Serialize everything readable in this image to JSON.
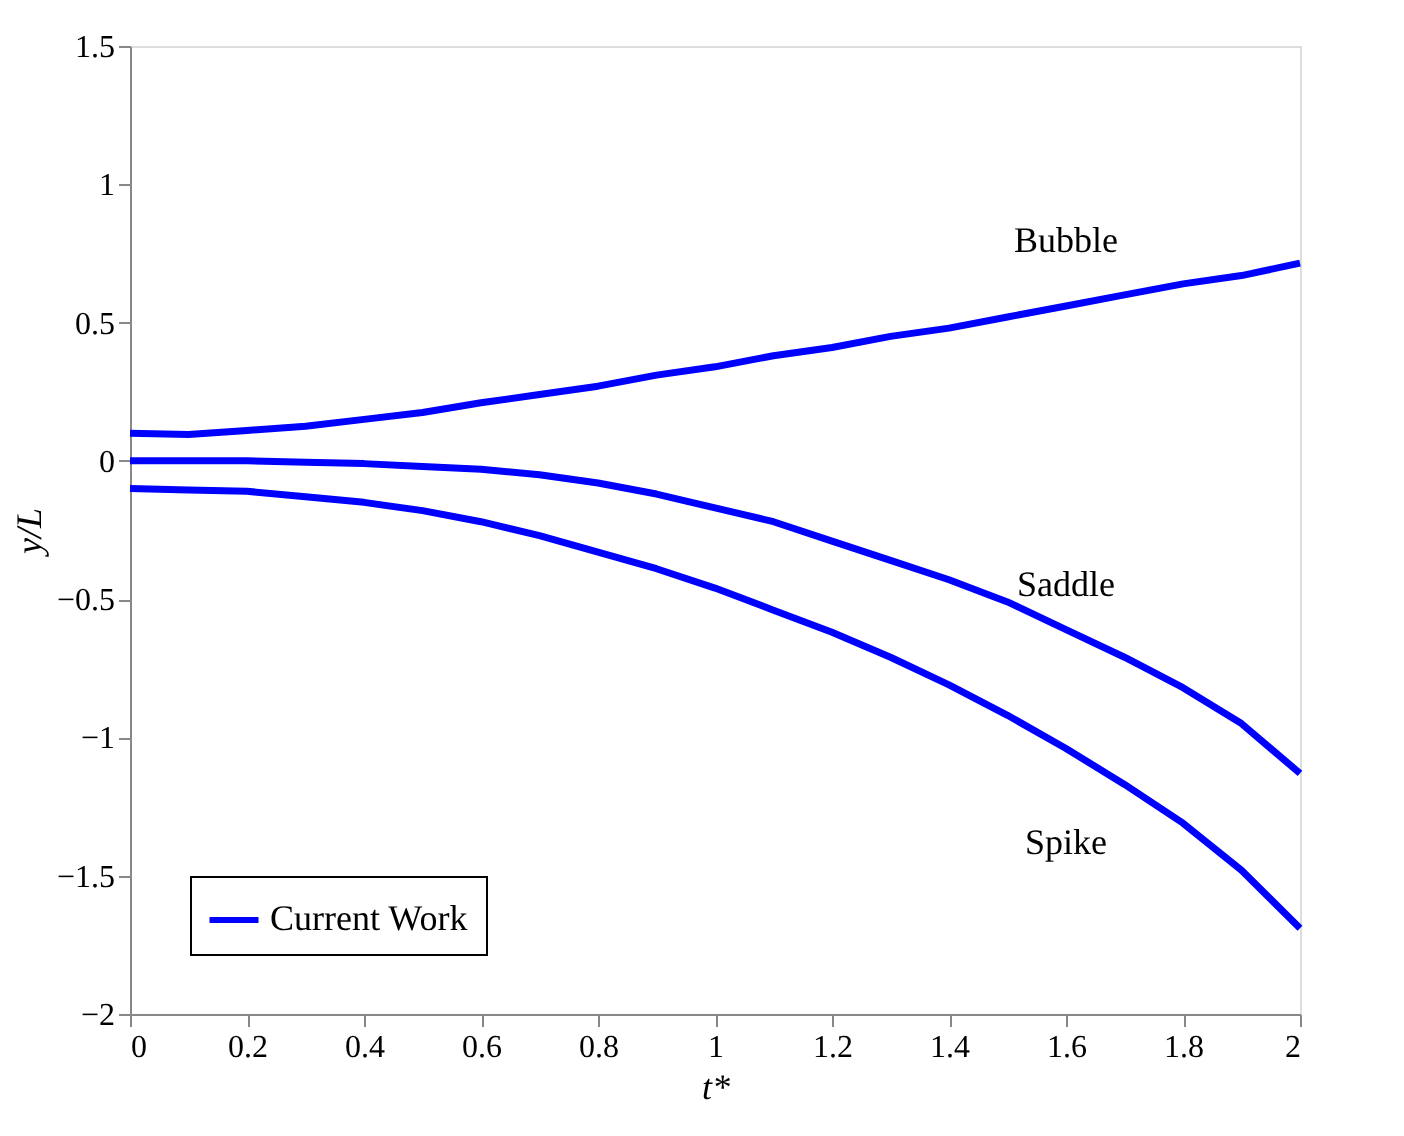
{
  "chart_data": {
    "type": "line",
    "xlabel": "t*",
    "ylabel": "y/L",
    "xlim": [
      0,
      2
    ],
    "ylim": [
      -2,
      1.5
    ],
    "xticks": [
      0,
      0.2,
      0.4,
      0.6,
      0.8,
      1,
      1.2,
      1.4,
      1.6,
      1.8,
      2
    ],
    "yticks": [
      -2,
      -1.5,
      -1,
      -0.5,
      0,
      0.5,
      1,
      1.5
    ],
    "x": [
      0,
      0.1,
      0.2,
      0.3,
      0.4,
      0.5,
      0.6,
      0.7,
      0.8,
      0.9,
      1.0,
      1.1,
      1.2,
      1.3,
      1.4,
      1.5,
      1.6,
      1.7,
      1.8,
      1.9,
      2.0
    ],
    "series": [
      {
        "name": "Current Work",
        "color": "#0000ff",
        "values": [
          0.1,
          0.095,
          0.11,
          0.125,
          0.15,
          0.175,
          0.21,
          0.24,
          0.27,
          0.31,
          0.34,
          0.38,
          0.41,
          0.45,
          0.48,
          0.52,
          0.56,
          0.6,
          0.64,
          0.67,
          0.715
        ]
      },
      {
        "color": "#0000ff",
        "values": [
          0,
          0,
          0,
          -0.005,
          -0.01,
          -0.02,
          -0.03,
          -0.05,
          -0.08,
          -0.12,
          -0.17,
          -0.22,
          -0.29,
          -0.36,
          -0.43,
          -0.51,
          -0.61,
          -0.71,
          -0.82,
          -0.95,
          -1.13
        ]
      },
      {
        "color": "#0000ff",
        "values": [
          -0.1,
          -0.105,
          -0.11,
          -0.13,
          -0.15,
          -0.18,
          -0.22,
          -0.27,
          -0.33,
          -0.39,
          -0.46,
          -0.54,
          -0.62,
          -0.71,
          -0.81,
          -0.92,
          -1.04,
          -1.17,
          -1.31,
          -1.48,
          -1.69
        ]
      }
    ],
    "annotations": [
      "Bubble",
      "Saddle",
      "Spike"
    ],
    "legend": "bottom left",
    "grid": false,
    "marker": "none",
    "line_style": "solid"
  }
}
